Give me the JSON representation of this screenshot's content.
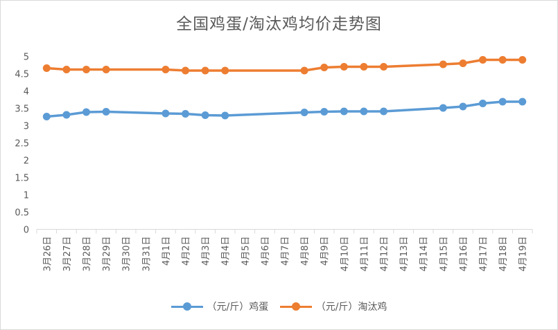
{
  "chart_data": {
    "type": "line",
    "title": "全国鸡蛋/淘汰鸡均价走势图",
    "categories": [
      "3月26日",
      "3月27日",
      "3月28日",
      "3月29日",
      "3月30日",
      "3月31日",
      "4月1日",
      "4月2日",
      "4月3日",
      "4月4日",
      "4月5日",
      "4月6日",
      "4月7日",
      "4月8日",
      "4月9日",
      "4月10日",
      "4月11日",
      "4月12日",
      "4月13日",
      "4月14日",
      "4月15日",
      "4月16日",
      "4月17日",
      "4月18日",
      "4月19日"
    ],
    "yticks": [
      "0",
      "0.5",
      "1",
      "1.5",
      "2",
      "2.5",
      "3",
      "3.5",
      "4",
      "4.5",
      "5"
    ],
    "ylim": [
      0,
      5.2
    ],
    "grid": false,
    "legend_position": "bottom",
    "series": [
      {
        "name": "（元/斤）鸡蛋",
        "color": "#5b9bd5",
        "values": [
          3.26,
          3.31,
          3.39,
          3.4,
          null,
          null,
          3.35,
          3.34,
          3.3,
          3.29,
          null,
          null,
          null,
          3.38,
          3.4,
          3.41,
          3.41,
          3.41,
          null,
          null,
          3.51,
          3.55,
          3.64,
          3.69,
          3.69
        ]
      },
      {
        "name": "（元/斤）淘汰鸡",
        "color": "#ed7d31",
        "values": [
          4.66,
          4.62,
          4.62,
          4.62,
          null,
          null,
          4.62,
          4.59,
          4.59,
          4.59,
          null,
          null,
          null,
          4.59,
          4.68,
          4.7,
          4.7,
          4.7,
          null,
          null,
          4.77,
          4.8,
          4.9,
          4.9,
          4.9
        ]
      }
    ]
  }
}
